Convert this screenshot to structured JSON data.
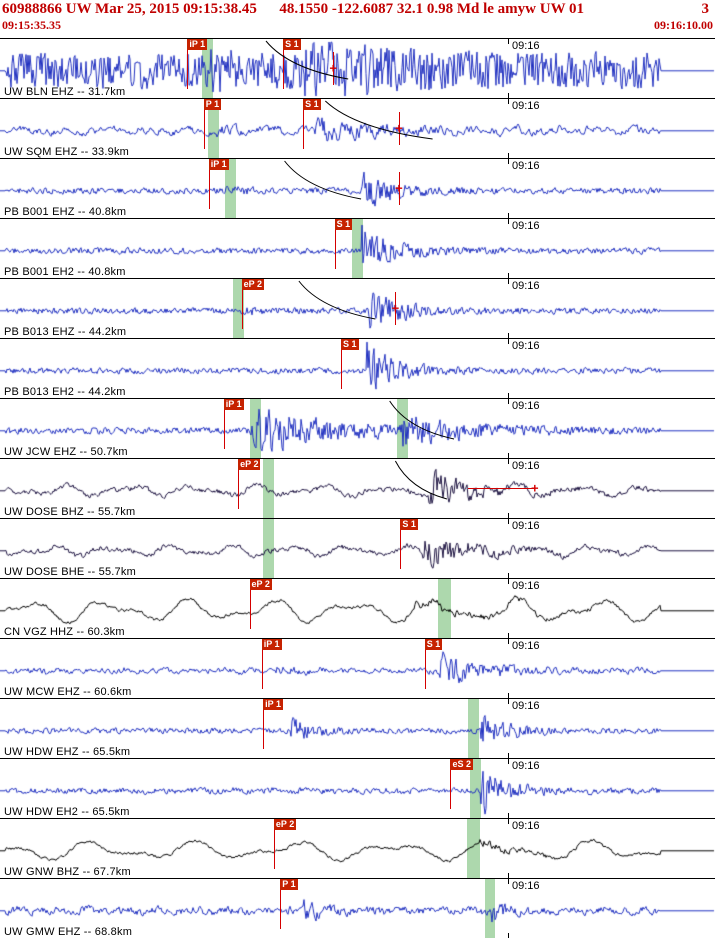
{
  "header": {
    "title": "60988866 UW Mar 25, 2015 09:15:38.45      48.1550 -122.6087 32.1 0.98 Md le amyw UW 01",
    "page_number": "3",
    "start_time": "09:15:35.35",
    "end_time": "09:16:10.00",
    "text_color": "#c00000"
  },
  "timeline": {
    "label": "09:16",
    "frac": 0.7105
  },
  "colors": {
    "trace_blue": "#2030c0",
    "trace_dark_purple": "#1c1240",
    "trace_black": "#000000",
    "pick_red": "#c62200",
    "band_green": "#98ce98"
  },
  "traces": [
    {
      "station": "UW BLN EHZ -- 31.7km",
      "time_label": "09:16",
      "color": "#2030c0",
      "wave": {
        "seed": 101,
        "noise": 9,
        "smooth": 0.12,
        "lpamp": 0,
        "p": 0.29,
        "pamp": 4,
        "pdecay": 20,
        "s": 0.42,
        "samp": 9,
        "sdecay": 9
      },
      "picks": [
        {
          "label": "iP 1",
          "frac": 0.262
        },
        {
          "label": "S 1",
          "frac": 0.396
        }
      ],
      "bands": [
        {
          "frac": 0.282,
          "w": 0.015
        }
      ],
      "crosses": [
        {
          "frac": 0.466,
          "line": true
        }
      ],
      "arc": {
        "x0": 0.372,
        "x1": 0.487
      }
    },
    {
      "station": "UW SQM EHZ -- 33.9km",
      "time_label": "09:16",
      "color": "#2030c0",
      "wave": {
        "seed": 202,
        "noise": 2.8,
        "smooth": 0.55,
        "lpamp": 3,
        "lpf1": 110,
        "lpf2": 190,
        "p": 0.3,
        "pamp": 2.5,
        "pdecay": 22,
        "s": 0.44,
        "samp": 8,
        "sdecay": 12
      },
      "picks": [
        {
          "label": "P 1",
          "frac": 0.285
        },
        {
          "label": "S 1",
          "frac": 0.424
        }
      ],
      "bands": [
        {
          "frac": 0.291,
          "w": 0.015
        }
      ],
      "crosses": [
        {
          "frac": 0.558,
          "line": true
        }
      ],
      "arc": {
        "x0": 0.455,
        "x1": 0.605
      }
    },
    {
      "station": "PB B001 EHZ -- 40.8km",
      "time_label": "09:16",
      "color": "#2030c0",
      "wave": {
        "seed": 303,
        "noise": 1.8,
        "smooth": 0.3,
        "lpamp": 0,
        "p": 0.315,
        "pamp": 1.5,
        "pdecay": 30,
        "s": 0.505,
        "samp": 11,
        "sdecay": 25
      },
      "picks": [
        {
          "label": "iP 1",
          "frac": 0.292
        }
      ],
      "bands": [
        {
          "frac": 0.315,
          "w": 0.015
        }
      ],
      "crosses": [
        {
          "frac": 0.558,
          "line": true
        }
      ],
      "arc": {
        "x0": 0.398,
        "x1": 0.505
      }
    },
    {
      "station": "PB B001 EH2 -- 40.8km",
      "time_label": "09:16",
      "color": "#2030c0",
      "wave": {
        "seed": 404,
        "noise": 1.8,
        "smooth": 0.3,
        "lpamp": 0,
        "s": 0.505,
        "samp": 14,
        "sdecay": 25
      },
      "picks": [
        {
          "label": "S 1",
          "frac": 0.468
        }
      ],
      "bands": [
        {
          "frac": 0.492,
          "w": 0.015
        }
      ],
      "crosses": []
    },
    {
      "station": "PB B013 EHZ -- 44.2km",
      "time_label": "09:16",
      "color": "#2030c0",
      "wave": {
        "seed": 505,
        "noise": 1.8,
        "smooth": 0.3,
        "lpamp": 0,
        "p": 0.34,
        "pamp": 1.5,
        "pdecay": 30,
        "s": 0.515,
        "samp": 12,
        "sdecay": 24
      },
      "picks": [
        {
          "label": "eP 2",
          "frac": 0.338
        }
      ],
      "bands": [
        {
          "frac": 0.326,
          "w": 0.015
        }
      ],
      "crosses": [
        {
          "frac": 0.553,
          "line": true
        }
      ],
      "arc": {
        "x0": 0.418,
        "x1": 0.525
      }
    },
    {
      "station": "PB B013 EH2 -- 44.2km",
      "time_label": "09:16",
      "color": "#2030c0",
      "wave": {
        "seed": 606,
        "noise": 1.8,
        "smooth": 0.3,
        "lpamp": 0,
        "s": 0.512,
        "samp": 16,
        "sdecay": 26
      },
      "picks": [
        {
          "label": "S 1",
          "frac": 0.477
        }
      ],
      "bands": [],
      "crosses": []
    },
    {
      "station": "UW JCW EHZ -- 50.7km",
      "time_label": "09:16",
      "color": "#2030c0",
      "wave": {
        "seed": 707,
        "noise": 1.8,
        "smooth": 0.25,
        "lpamp": 0,
        "p": 0.35,
        "pamp": 13,
        "pdecay": 9,
        "s": 0.56,
        "samp": 7,
        "sdecay": 12
      },
      "picks": [
        {
          "label": "iP 1",
          "frac": 0.313
        }
      ],
      "bands": [
        {
          "frac": 0.35,
          "w": 0.015
        },
        {
          "frac": 0.555,
          "w": 0.015
        }
      ],
      "crosses": [],
      "arc": {
        "x0": 0.545,
        "x1": 0.635
      }
    },
    {
      "station": "UW DOSE BHZ -- 55.7km",
      "time_label": "09:16",
      "color": "#1c1240",
      "wave": {
        "seed": 808,
        "noise": 1.6,
        "smooth": 0.4,
        "lpamp": 6,
        "lpf1": 70,
        "lpf2": 120,
        "s": 0.6,
        "samp": 12,
        "sdecay": 18
      },
      "picks": [
        {
          "label": "eP 2",
          "frac": 0.333
        }
      ],
      "bands": [
        {
          "frac": 0.368,
          "w": 0.015
        }
      ],
      "crosses": [
        {
          "frac": 0.748,
          "line": false
        }
      ],
      "hline": {
        "x0": 0.655,
        "x1": 0.748
      },
      "arc": {
        "x0": 0.553,
        "x1": 0.625
      }
    },
    {
      "station": "UW DOSE BHE -- 55.7km",
      "time_label": "09:16",
      "color": "#1c1240",
      "wave": {
        "seed": 909,
        "noise": 1.6,
        "smooth": 0.4,
        "lpamp": 5.5,
        "lpf1": 75,
        "lpf2": 130,
        "s": 0.59,
        "samp": 11,
        "sdecay": 18
      },
      "picks": [
        {
          "label": "S 1",
          "frac": 0.56
        }
      ],
      "bands": [
        {
          "frac": 0.368,
          "w": 0.015
        }
      ],
      "crosses": []
    },
    {
      "station": "CN VGZ HHZ -- 60.3km",
      "time_label": "09:16",
      "color": "#000000",
      "wave": {
        "seed": 1010,
        "noise": 1.2,
        "smooth": 0.5,
        "lpamp": 12,
        "lpf1": 55,
        "lpf2": 95,
        "s": 0.58,
        "samp": 3,
        "sdecay": 8
      },
      "picks": [
        {
          "label": "eP 2",
          "frac": 0.349
        }
      ],
      "bands": [
        {
          "frac": 0.612,
          "w": 0.018
        }
      ],
      "crosses": []
    },
    {
      "station": "UW MCW EHZ -- 60.6km",
      "time_label": "09:16",
      "color": "#2030c0",
      "wave": {
        "seed": 1111,
        "noise": 1.6,
        "smooth": 0.35,
        "lpamp": 1.5,
        "lpf1": 140,
        "lpf2": 210,
        "p": 0.385,
        "pamp": 1.5,
        "pdecay": 30,
        "s": 0.615,
        "samp": 9,
        "sdecay": 18
      },
      "picks": [
        {
          "label": "iP 1",
          "frac": 0.366
        },
        {
          "label": "S 1",
          "frac": 0.594
        }
      ],
      "bands": [],
      "crosses": []
    },
    {
      "station": "UW HDW EHZ -- 65.5km",
      "time_label": "09:16",
      "color": "#2030c0",
      "wave": {
        "seed": 1212,
        "noise": 1.6,
        "smooth": 0.3,
        "lpamp": 0,
        "p": 0.405,
        "pamp": 8,
        "pdecay": 35,
        "s": 0.672,
        "samp": 12,
        "sdecay": 30
      },
      "picks": [
        {
          "label": "iP 1",
          "frac": 0.368
        }
      ],
      "bands": [
        {
          "frac": 0.655,
          "w": 0.016
        }
      ],
      "crosses": []
    },
    {
      "station": "UW HDW EH2 -- 65.5km",
      "time_label": "09:16",
      "color": "#2030c0",
      "wave": {
        "seed": 1313,
        "noise": 1.6,
        "smooth": 0.3,
        "lpamp": 1.2,
        "lpf1": 120,
        "lpf2": 180,
        "s": 0.672,
        "samp": 14,
        "sdecay": 30
      },
      "picks": [
        {
          "label": "eS 2",
          "frac": 0.63
        }
      ],
      "bands": [
        {
          "frac": 0.658,
          "w": 0.016
        }
      ],
      "crosses": []
    },
    {
      "station": "UW GNW BHZ -- 67.7km",
      "time_label": "09:16",
      "color": "#000000",
      "wave": {
        "seed": 1414,
        "noise": 1.2,
        "smooth": 0.5,
        "lpamp": 10,
        "lpf1": 45,
        "lpf2": 80,
        "s": 0.67,
        "samp": 3,
        "sdecay": 20
      },
      "picks": [
        {
          "label": "eP 2",
          "frac": 0.383
        }
      ],
      "bands": [
        {
          "frac": 0.653,
          "w": 0.018
        }
      ],
      "crosses": []
    },
    {
      "station": "UW GMW EHZ -- 68.8km",
      "time_label": "09:16",
      "color": "#2030c0",
      "wave": {
        "seed": 1515,
        "noise": 2.6,
        "smooth": 0.45,
        "lpamp": 2,
        "lpf1": 130,
        "lpf2": 200,
        "p": 0.425,
        "pamp": 5,
        "pdecay": 40,
        "s": 0.687,
        "samp": 8,
        "sdecay": 60
      },
      "picks": [
        {
          "label": "P 1",
          "frac": 0.392
        }
      ],
      "bands": [
        {
          "frac": 0.678,
          "w": 0.014
        }
      ],
      "crosses": []
    }
  ]
}
